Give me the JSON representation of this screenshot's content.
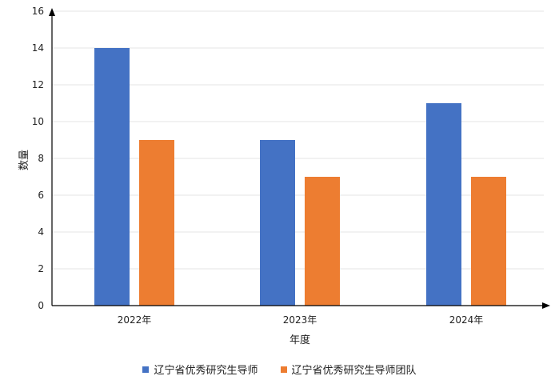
{
  "chart_data": {
    "type": "bar",
    "categories": [
      "2022年",
      "2023年",
      "2024年"
    ],
    "series": [
      {
        "name": "辽宁省优秀研究生导师",
        "values": [
          14,
          9,
          11
        ],
        "color": "#4472C4"
      },
      {
        "name": "辽宁省优秀研究生导师团队",
        "values": [
          9,
          7,
          7
        ],
        "color": "#ED7D31"
      }
    ],
    "xlabel": "年度",
    "ylabel": "数量",
    "ylim": [
      0,
      16
    ],
    "yticks": [
      0,
      2,
      4,
      6,
      8,
      10,
      12,
      14,
      16
    ],
    "grid": true,
    "legend_position": "bottom"
  }
}
